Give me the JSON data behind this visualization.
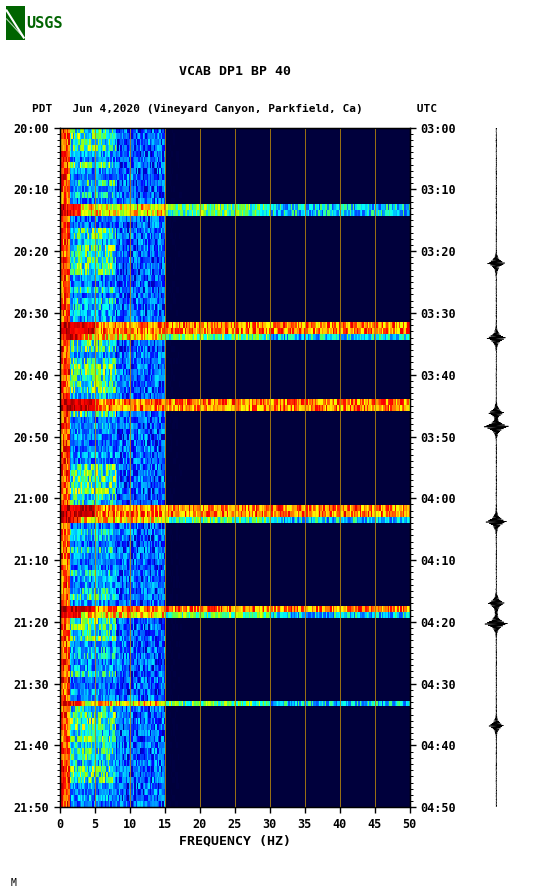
{
  "title_line1": "VCAB DP1 BP 40",
  "title_line2": "PDT   Jun 4,2020 (Vineyard Canyon, Parkfield, Ca)        UTC",
  "xlabel": "FREQUENCY (HZ)",
  "freq_min": 0,
  "freq_max": 50,
  "left_ytick_labels": [
    "20:00",
    "20:10",
    "20:20",
    "20:30",
    "20:40",
    "20:50",
    "21:00",
    "21:10",
    "21:20",
    "21:30",
    "21:40",
    "21:50"
  ],
  "right_ytick_labels": [
    "03:00",
    "03:10",
    "03:20",
    "03:30",
    "03:40",
    "03:50",
    "04:00",
    "04:10",
    "04:20",
    "04:30",
    "04:40",
    "04:50"
  ],
  "xtick_positions": [
    0,
    5,
    10,
    15,
    20,
    25,
    30,
    35,
    40,
    45,
    50
  ],
  "xtick_labels": [
    "0",
    "5",
    "10",
    "15",
    "20",
    "25",
    "30",
    "35",
    "40",
    "45",
    "50"
  ],
  "vertical_grid_positions": [
    5,
    10,
    15,
    20,
    25,
    30,
    35,
    40,
    45
  ],
  "bg_color": "#ffffff",
  "grid_color": "#b8860b",
  "waveform_color": "#000000",
  "tick_label_fontsize": 8.5,
  "title_fontsize": 9.5,
  "num_time_steps": 115,
  "num_freq_bins": 250,
  "random_seed": 42,
  "earthquake_rows": [
    13,
    14,
    34,
    35,
    47,
    65,
    66,
    82,
    97
  ],
  "dark_red_rows": [
    33,
    34,
    46,
    47,
    64,
    65,
    81
  ],
  "waveform_event_positions": [
    0.12,
    0.27,
    0.3,
    0.42,
    0.56,
    0.58,
    0.69,
    0.8
  ]
}
